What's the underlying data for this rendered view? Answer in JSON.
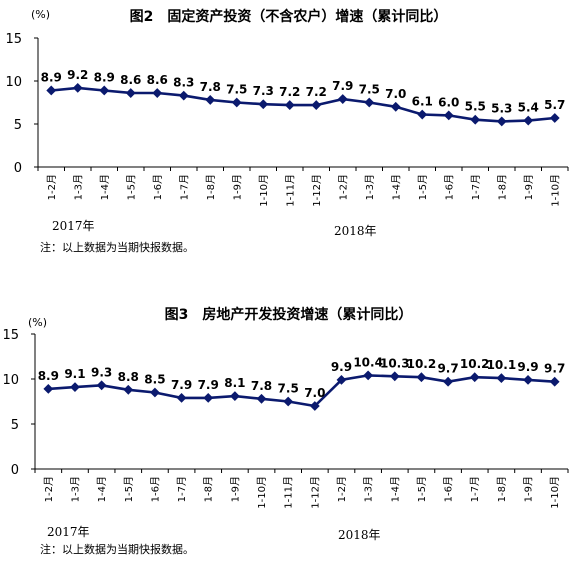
{
  "chart_data": [
    {
      "type": "line",
      "title": "图2　固定资产投资（不含农户）增速（累计同比）",
      "unit": "(%)",
      "categories": [
        "1-2月",
        "1-3月",
        "1-4月",
        "1-5月",
        "1-6月",
        "1-7月",
        "1-8月",
        "1-9月",
        "1-10月",
        "1-11月",
        "1-12月",
        "1-2月",
        "1-3月",
        "1-4月",
        "1-5月",
        "1-6月",
        "1-7月",
        "1-8月",
        "1-9月",
        "1-10月"
      ],
      "series": [
        {
          "values": [
            8.9,
            9.2,
            8.9,
            8.6,
            8.6,
            8.3,
            7.8,
            7.5,
            7.3,
            7.2,
            7.2,
            7.9,
            7.5,
            7.0,
            6.1,
            6.0,
            5.5,
            5.3,
            5.4,
            5.7
          ]
        }
      ],
      "data_labels": [
        "8.9",
        "9.2",
        "8.9",
        "8.6",
        "8.6",
        "8.3",
        "7.8",
        "7.5",
        "7.3",
        "7.2",
        "7.2",
        "7.9",
        "7.5",
        "7.0",
        "6.1",
        "6.0",
        "5.5",
        "5.3",
        "5.4",
        "5.7"
      ],
      "y_ticks": [
        "0",
        "5",
        "10",
        "15"
      ],
      "ylim": [
        0,
        15
      ],
      "grid": false,
      "color": "#0b1a6e",
      "year_labels": [
        "2017年",
        "2018年"
      ],
      "note": "注：以上数据为当期快报数据。"
    },
    {
      "type": "line",
      "title": "图3　房地产开发投资增速（累计同比）",
      "unit": "(%)",
      "categories": [
        "1-2月",
        "1-3月",
        "1-4月",
        "1-5月",
        "1-6月",
        "1-7月",
        "1-8月",
        "1-9月",
        "1-10月",
        "1-11月",
        "1-12月",
        "1-2月",
        "1-3月",
        "1-4月",
        "1-5月",
        "1-6月",
        "1-7月",
        "1-8月",
        "1-9月",
        "1-10月"
      ],
      "series": [
        {
          "values": [
            8.9,
            9.1,
            9.3,
            8.8,
            8.5,
            7.9,
            7.9,
            8.1,
            7.8,
            7.5,
            7.0,
            9.9,
            10.4,
            10.3,
            10.2,
            9.7,
            10.2,
            10.1,
            9.9,
            9.7
          ]
        }
      ],
      "data_labels": [
        "8.9",
        "9.1",
        "9.3",
        "8.8",
        "8.5",
        "7.9",
        "7.9",
        "8.1",
        "7.8",
        "7.5",
        "7.0",
        "9.9",
        "10.4",
        "10.3",
        "10.2",
        "9.7",
        "10.2",
        "10.1",
        "9.9",
        "9.7"
      ],
      "y_ticks": [
        "0",
        "5",
        "10",
        "15"
      ],
      "ylim": [
        0,
        15
      ],
      "grid": false,
      "color": "#0b1a6e",
      "year_labels": [
        "2017年",
        "2018年"
      ],
      "note": "注：以上数据为当期快报数据。"
    }
  ]
}
